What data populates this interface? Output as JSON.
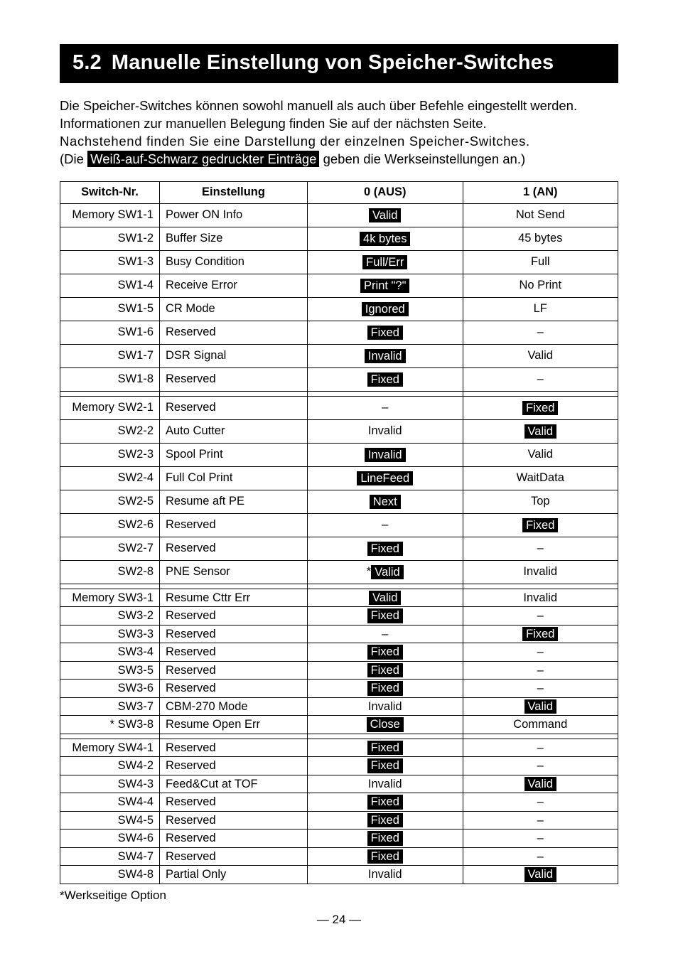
{
  "heading": {
    "number": "5.2",
    "title": "Manuelle Einstellung von Speicher-Switches"
  },
  "intro": {
    "line1": "Die Speicher-Switches können sowohl manuell als auch über Befehle eingestellt werden.",
    "line2": "Informationen zur manuellen Belegung finden Sie auf der nächsten Seite.",
    "line3": "Nachstehend finden Sie eine Darstellung der einzelnen Speicher-Switches.",
    "line4a": "(Die ",
    "line4_inv": "Weiß-auf-Schwarz gedruckter Einträge",
    "line4b": " geben die Werkseinstellungen an.)"
  },
  "table": {
    "headers": {
      "c1": "Switch-Nr.",
      "c2": "Einstellung",
      "c3": "0 (AUS)",
      "c4": "1 (AN)"
    },
    "groups": [
      {
        "tall": true,
        "rows": [
          {
            "nr": "Memory SW1-1",
            "setting": "Power ON Info",
            "off": {
              "t": "Valid",
              "pill": true
            },
            "on": {
              "t": "Not Send"
            }
          },
          {
            "nr": "SW1-2",
            "setting": "Buffer Size",
            "off": {
              "t": "4k bytes",
              "pill": true
            },
            "on": {
              "t": "45 bytes"
            }
          },
          {
            "nr": "SW1-3",
            "setting": "Busy Condition",
            "off": {
              "t": "Full/Err",
              "pill": true
            },
            "on": {
              "t": "Full"
            }
          },
          {
            "nr": "SW1-4",
            "setting": "Receive Error",
            "off": {
              "t": "Print \"?\"",
              "pill": true
            },
            "on": {
              "t": "No Print"
            }
          },
          {
            "nr": "SW1-5",
            "setting": "CR Mode",
            "off": {
              "t": "Ignored",
              "pill": true
            },
            "on": {
              "t": "LF"
            }
          },
          {
            "nr": "SW1-6",
            "setting": "Reserved",
            "off": {
              "t": "Fixed",
              "pill": true
            },
            "on": {
              "t": "–"
            }
          },
          {
            "nr": "SW1-7",
            "setting": "DSR Signal",
            "off": {
              "t": "Invalid",
              "pill": true
            },
            "on": {
              "t": "Valid"
            }
          },
          {
            "nr": "SW1-8",
            "setting": "Reserved",
            "off": {
              "t": "Fixed",
              "pill": true
            },
            "on": {
              "t": "–"
            }
          }
        ]
      },
      {
        "tall": true,
        "rows": [
          {
            "nr": "Memory SW2-1",
            "setting": "Reserved",
            "off": {
              "t": "–"
            },
            "on": {
              "t": "Fixed",
              "pill": true
            }
          },
          {
            "nr": "SW2-2",
            "setting": "Auto Cutter",
            "off": {
              "t": "Invalid"
            },
            "on": {
              "t": "Valid",
              "pill": true
            }
          },
          {
            "nr": "SW2-3",
            "setting": "Spool Print",
            "off": {
              "t": "Invalid",
              "pill": true
            },
            "on": {
              "t": "Valid"
            }
          },
          {
            "nr": "SW2-4",
            "setting": "Full Col Print",
            "off": {
              "t": "LineFeed",
              "pill": true
            },
            "on": {
              "t": "WaitData"
            }
          },
          {
            "nr": "SW2-5",
            "setting": "Resume aft PE",
            "off": {
              "t": "Next",
              "pill": true
            },
            "on": {
              "t": "Top"
            }
          },
          {
            "nr": "SW2-6",
            "setting": "Reserved",
            "off": {
              "t": "–"
            },
            "on": {
              "t": "Fixed",
              "pill": true
            }
          },
          {
            "nr": "SW2-7",
            "setting": "Reserved",
            "off": {
              "t": "Fixed",
              "pill": true
            },
            "on": {
              "t": "–"
            }
          },
          {
            "nr": "SW2-8",
            "setting": "PNE Sensor",
            "off": {
              "t": "Valid",
              "pill": true,
              "star": true
            },
            "on": {
              "t": "Invalid"
            }
          }
        ]
      },
      {
        "tall": false,
        "rows": [
          {
            "nr": "Memory SW3-1",
            "setting": "Resume Cttr Err",
            "off": {
              "t": "Valid",
              "pill": true
            },
            "on": {
              "t": "Invalid"
            }
          },
          {
            "nr": "SW3-2",
            "setting": "Reserved",
            "off": {
              "t": "Fixed",
              "pill": true
            },
            "on": {
              "t": "–"
            }
          },
          {
            "nr": "SW3-3",
            "setting": "Reserved",
            "off": {
              "t": "–"
            },
            "on": {
              "t": "Fixed",
              "pill": true
            }
          },
          {
            "nr": "SW3-4",
            "setting": "Reserved",
            "off": {
              "t": "Fixed",
              "pill": true
            },
            "on": {
              "t": "–"
            }
          },
          {
            "nr": "SW3-5",
            "setting": "Reserved",
            "off": {
              "t": "Fixed",
              "pill": true
            },
            "on": {
              "t": "–"
            }
          },
          {
            "nr": "SW3-6",
            "setting": "Reserved",
            "off": {
              "t": "Fixed",
              "pill": true
            },
            "on": {
              "t": "–"
            }
          },
          {
            "nr": "SW3-7",
            "setting": "CBM-270 Mode",
            "off": {
              "t": "Invalid"
            },
            "on": {
              "t": "Valid",
              "pill": true
            }
          },
          {
            "nr": "* SW3-8",
            "setting": "Resume Open Err",
            "off": {
              "t": "Close",
              "pill": true
            },
            "on": {
              "t": "Command"
            }
          }
        ]
      },
      {
        "tall": false,
        "rows": [
          {
            "nr": "Memory SW4-1",
            "setting": "Reserved",
            "off": {
              "t": "Fixed",
              "pill": true
            },
            "on": {
              "t": "–"
            }
          },
          {
            "nr": "SW4-2",
            "setting": "Reserved",
            "off": {
              "t": "Fixed",
              "pill": true
            },
            "on": {
              "t": "–"
            }
          },
          {
            "nr": "SW4-3",
            "setting": "Feed&Cut at TOF",
            "off": {
              "t": "Invalid"
            },
            "on": {
              "t": "Valid",
              "pill": true
            }
          },
          {
            "nr": "SW4-4",
            "setting": "Reserved",
            "off": {
              "t": "Fixed",
              "pill": true
            },
            "on": {
              "t": "–"
            }
          },
          {
            "nr": "SW4-5",
            "setting": "Reserved",
            "off": {
              "t": "Fixed",
              "pill": true
            },
            "on": {
              "t": "–"
            }
          },
          {
            "nr": "SW4-6",
            "setting": "Reserved",
            "off": {
              "t": "Fixed",
              "pill": true
            },
            "on": {
              "t": "–"
            }
          },
          {
            "nr": "SW4-7",
            "setting": "Reserved",
            "off": {
              "t": "Fixed",
              "pill": true
            },
            "on": {
              "t": "–"
            }
          },
          {
            "nr": "SW4-8",
            "setting": "Partial Only",
            "off": {
              "t": "Invalid"
            },
            "on": {
              "t": "Valid",
              "pill": true
            }
          }
        ]
      }
    ]
  },
  "footnote": "*Werkseitige Option",
  "pagenum": "— 24 —"
}
